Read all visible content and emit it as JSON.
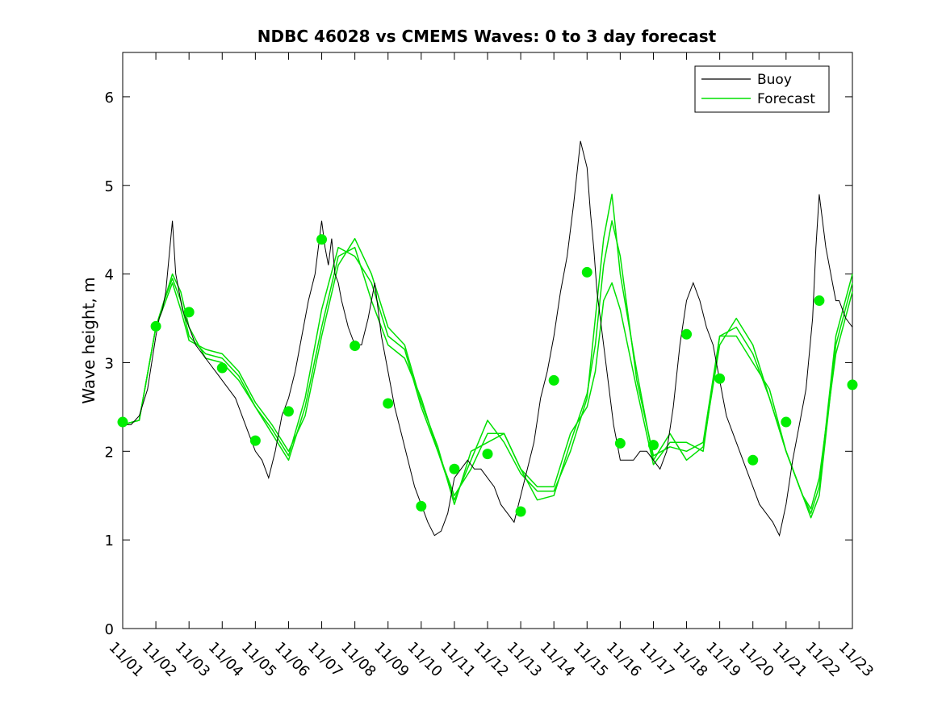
{
  "chart_data": {
    "type": "line",
    "title": "NDBC 46028 vs CMEMS Waves: 0 to 3 day forecast",
    "xlabel": "",
    "ylabel": "Wave height, m",
    "xlim": [
      0,
      22
    ],
    "ylim": [
      0,
      6.5
    ],
    "yticks": [
      0,
      1,
      2,
      3,
      4,
      5,
      6
    ],
    "xtick_labels": [
      "11/01",
      "11/02",
      "11/03",
      "11/04",
      "11/05",
      "11/06",
      "11/07",
      "11/08",
      "11/09",
      "11/10",
      "11/11",
      "11/12",
      "11/13",
      "11/14",
      "11/15",
      "11/16",
      "11/17",
      "11/18",
      "11/19",
      "11/20",
      "11/21",
      "11/22",
      "11/23"
    ],
    "grid": false,
    "legend": {
      "placement": "top-right",
      "entries": [
        "Buoy",
        "Forecast"
      ]
    },
    "colors": {
      "buoy": "#000000",
      "forecast": "#00e000",
      "marker": "#00ee00"
    },
    "series": [
      {
        "name": "Buoy",
        "x": [
          0,
          0.25,
          0.5,
          0.75,
          1.0,
          1.1,
          1.2,
          1.3,
          1.4,
          1.5,
          1.6,
          1.7,
          1.8,
          1.9,
          2.0,
          2.2,
          2.4,
          2.6,
          2.8,
          3.0,
          3.2,
          3.4,
          3.6,
          3.8,
          4.0,
          4.2,
          4.4,
          4.6,
          4.8,
          5.0,
          5.2,
          5.4,
          5.6,
          5.8,
          5.9,
          6.0,
          6.1,
          6.2,
          6.3,
          6.4,
          6.5,
          6.6,
          6.8,
          7.0,
          7.2,
          7.4,
          7.6,
          7.8,
          8.0,
          8.2,
          8.4,
          8.6,
          8.8,
          9.0,
          9.2,
          9.4,
          9.6,
          9.8,
          10.0,
          10.2,
          10.4,
          10.6,
          10.8,
          11.0,
          11.2,
          11.4,
          11.6,
          11.8,
          12.0,
          12.2,
          12.4,
          12.6,
          12.8,
          13.0,
          13.2,
          13.4,
          13.6,
          13.8,
          14.0,
          14.1,
          14.2,
          14.3,
          14.4,
          14.5,
          14.6,
          14.7,
          14.8,
          14.9,
          15.0,
          15.2,
          15.4,
          15.6,
          15.8,
          16.0,
          16.2,
          16.4,
          16.6,
          16.8,
          17.0,
          17.2,
          17.4,
          17.6,
          17.8,
          17.9,
          18.0,
          18.1,
          18.2,
          18.4,
          18.6,
          18.8,
          19.0,
          19.2,
          19.4,
          19.6,
          19.8,
          20.0,
          20.2,
          20.4,
          20.6,
          20.8,
          20.9,
          21.0,
          21.2,
          21.4,
          21.5,
          21.6,
          21.8,
          22.0
        ],
        "values": [
          2.3,
          2.3,
          2.4,
          2.7,
          3.3,
          3.5,
          3.6,
          3.8,
          4.2,
          4.6,
          4.0,
          3.8,
          3.6,
          3.5,
          3.4,
          3.2,
          3.1,
          3.0,
          2.9,
          2.8,
          2.7,
          2.6,
          2.4,
          2.2,
          2.0,
          1.9,
          1.7,
          2.0,
          2.4,
          2.6,
          2.9,
          3.3,
          3.7,
          4.0,
          4.3,
          4.6,
          4.3,
          4.1,
          4.4,
          4.0,
          3.9,
          3.7,
          3.4,
          3.2,
          3.2,
          3.5,
          3.9,
          3.3,
          2.9,
          2.5,
          2.2,
          1.9,
          1.6,
          1.4,
          1.2,
          1.05,
          1.1,
          1.3,
          1.7,
          1.8,
          1.9,
          1.8,
          1.8,
          1.7,
          1.6,
          1.4,
          1.3,
          1.2,
          1.5,
          1.8,
          2.1,
          2.6,
          2.9,
          3.3,
          3.8,
          4.2,
          4.8,
          5.5,
          5.2,
          4.7,
          4.3,
          3.8,
          3.5,
          3.2,
          2.9,
          2.6,
          2.3,
          2.1,
          1.9,
          1.9,
          1.9,
          2.0,
          2.0,
          1.9,
          1.8,
          2.0,
          2.5,
          3.2,
          3.7,
          3.9,
          3.7,
          3.4,
          3.2,
          3.0,
          2.8,
          2.6,
          2.4,
          2.2,
          2.0,
          1.8,
          1.6,
          1.4,
          1.3,
          1.2,
          1.05,
          1.4,
          1.9,
          2.3,
          2.7,
          3.5,
          4.3,
          4.9,
          4.3,
          3.9,
          3.7,
          3.7,
          3.5,
          3.4
        ]
      },
      {
        "name": "Forecast",
        "x": [
          0,
          0.5,
          1.0,
          1.25,
          1.5,
          1.75,
          2.0,
          2.5,
          3.0,
          3.5,
          4.0,
          4.5,
          5.0,
          5.5,
          6.0,
          6.5,
          7.0,
          7.5,
          8.0,
          8.5,
          9.0,
          9.5,
          10.0,
          10.5,
          11.0,
          11.5,
          12.0,
          12.5,
          13.0,
          13.5,
          14.0,
          14.25,
          14.5,
          14.75,
          15.0,
          15.5,
          16.0,
          16.5,
          17.0,
          17.5,
          18.0,
          18.5,
          19.0,
          19.5,
          20.0,
          20.5,
          20.75,
          21.0,
          21.5,
          22.0
        ],
        "values": [
          2.3,
          2.35,
          3.4,
          3.7,
          4.0,
          3.8,
          3.4,
          3.05,
          3.0,
          2.8,
          2.5,
          2.2,
          1.9,
          2.5,
          3.4,
          4.2,
          4.3,
          3.7,
          3.2,
          3.05,
          2.6,
          2.0,
          1.5,
          1.8,
          2.2,
          2.2,
          1.8,
          1.45,
          1.5,
          2.1,
          2.65,
          3.2,
          4.1,
          4.6,
          4.2,
          2.8,
          1.95,
          2.05,
          2.0,
          2.1,
          3.3,
          3.4,
          3.1,
          2.6,
          2.0,
          1.5,
          1.25,
          1.5,
          3.2,
          3.9
        ]
      },
      {
        "name": "Forecast",
        "x": [
          0,
          0.5,
          1.0,
          1.25,
          1.5,
          1.75,
          2.0,
          2.5,
          3.0,
          3.5,
          4.0,
          4.5,
          5.0,
          5.5,
          6.0,
          6.5,
          7.0,
          7.5,
          8.0,
          8.5,
          9.0,
          9.5,
          10.0,
          10.5,
          11.0,
          11.5,
          12.0,
          12.5,
          13.0,
          13.5,
          14.0,
          14.25,
          14.5,
          14.75,
          15.0,
          15.5,
          16.0,
          16.5,
          17.0,
          17.5,
          18.0,
          18.5,
          19.0,
          19.5,
          20.0,
          20.5,
          20.75,
          21.0,
          21.5,
          22.0
        ],
        "values": [
          2.3,
          2.35,
          3.4,
          3.7,
          3.95,
          3.7,
          3.3,
          3.1,
          3.05,
          2.85,
          2.5,
          2.25,
          1.95,
          2.6,
          3.6,
          4.3,
          4.2,
          3.9,
          3.3,
          3.15,
          2.5,
          2.0,
          1.45,
          1.9,
          2.35,
          2.1,
          1.75,
          1.55,
          1.55,
          2.0,
          2.6,
          3.5,
          4.4,
          4.9,
          4.0,
          2.9,
          1.9,
          2.2,
          1.9,
          2.05,
          3.2,
          3.5,
          3.2,
          2.6,
          2.0,
          1.5,
          1.3,
          1.6,
          3.3,
          4.0
        ]
      },
      {
        "name": "Forecast",
        "x": [
          0,
          0.5,
          1.0,
          1.25,
          1.5,
          1.75,
          2.0,
          2.5,
          3.0,
          3.5,
          4.0,
          4.5,
          5.0,
          5.5,
          6.0,
          6.5,
          7.0,
          7.5,
          8.0,
          8.5,
          9.0,
          9.5,
          10.0,
          10.5,
          11.0,
          11.5,
          12.0,
          12.5,
          13.0,
          13.5,
          14.0,
          14.25,
          14.5,
          14.75,
          15.0,
          15.5,
          16.0,
          16.5,
          17.0,
          17.5,
          18.0,
          18.5,
          19.0,
          19.5,
          20.0,
          20.5,
          20.75,
          21.0,
          21.5,
          22.0
        ],
        "values": [
          2.3,
          2.35,
          3.4,
          3.65,
          3.9,
          3.6,
          3.25,
          3.15,
          3.1,
          2.9,
          2.55,
          2.3,
          2.0,
          2.4,
          3.3,
          4.1,
          4.4,
          4.0,
          3.4,
          3.2,
          2.55,
          2.05,
          1.4,
          2.0,
          2.1,
          2.2,
          1.8,
          1.6,
          1.6,
          2.2,
          2.5,
          2.9,
          3.7,
          3.9,
          3.6,
          2.7,
          1.85,
          2.1,
          2.1,
          2.0,
          3.3,
          3.3,
          3.0,
          2.7,
          2.0,
          1.5,
          1.35,
          1.7,
          3.1,
          3.8
        ]
      },
      {
        "name": "Forecast markers",
        "x": [
          0,
          1,
          2,
          3,
          4,
          5,
          6,
          7,
          8,
          9,
          10,
          11,
          12,
          13,
          14,
          15,
          16,
          17,
          18,
          19,
          20,
          21,
          22
        ],
        "values": [
          2.33,
          3.41,
          3.57,
          2.94,
          2.12,
          2.45,
          4.39,
          3.19,
          2.54,
          1.38,
          1.8,
          1.97,
          1.32,
          2.8,
          4.02,
          2.09,
          2.07,
          3.32,
          2.82,
          1.9,
          2.33,
          3.7,
          2.75
        ]
      }
    ]
  }
}
